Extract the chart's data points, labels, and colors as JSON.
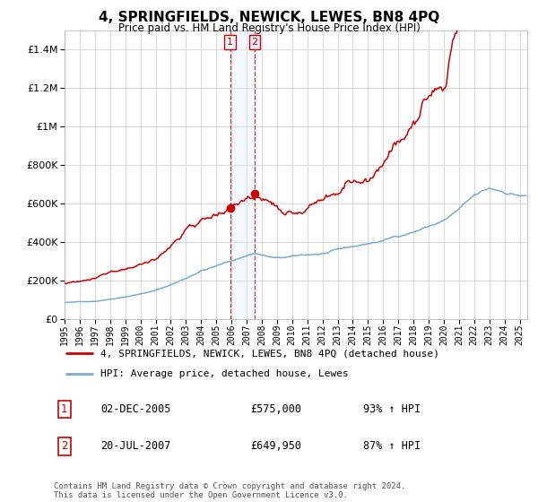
{
  "title": "4, SPRINGFIELDS, NEWICK, LEWES, BN8 4PQ",
  "subtitle": "Price paid vs. HM Land Registry's House Price Index (HPI)",
  "ylim": [
    0,
    1500000
  ],
  "xlim_start": 1995.0,
  "xlim_end": 2025.5,
  "red_line_color": "#cc0000",
  "blue_line_color": "#7aadcc",
  "shade_color": "#ddeeff",
  "marker_color": "#cc0000",
  "legend_label_red": "4, SPRINGFIELDS, NEWICK, LEWES, BN8 4PQ (detached house)",
  "legend_label_blue": "HPI: Average price, detached house, Lewes",
  "transaction1_date": "02-DEC-2005",
  "transaction1_price": "£575,000",
  "transaction1_hpi": "93% ↑ HPI",
  "transaction1_year": 2005.92,
  "transaction1_value": 575000,
  "transaction2_date": "20-JUL-2007",
  "transaction2_price": "£649,950",
  "transaction2_hpi": "87% ↑ HPI",
  "transaction2_year": 2007.54,
  "transaction2_value": 649950,
  "copyright_text": "Contains HM Land Registry data © Crown copyright and database right 2024.\nThis data is licensed under the Open Government Licence v3.0.",
  "background_color": "#ffffff",
  "grid_color": "#cccccc"
}
